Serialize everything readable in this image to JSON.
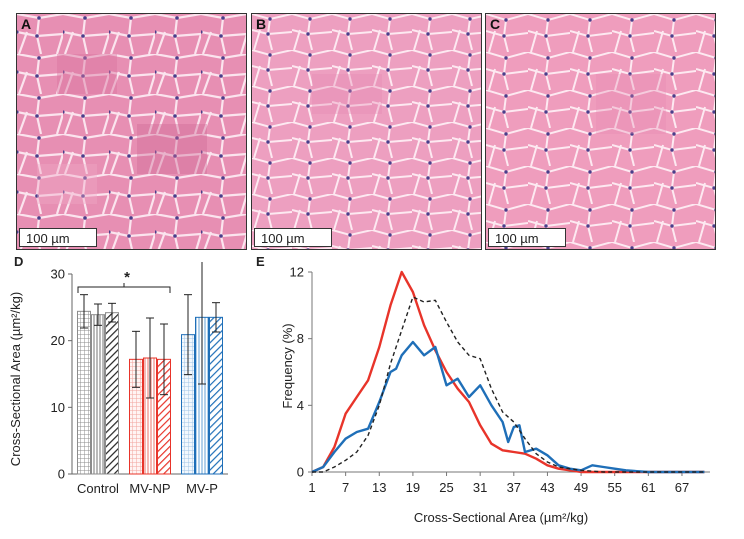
{
  "panels": [
    {
      "letter": "A",
      "scalebar": "100 µm"
    },
    {
      "letter": "B",
      "scalebar": "100 µm"
    },
    {
      "letter": "C",
      "scalebar": "100 µm"
    }
  ],
  "chart_data": [
    {
      "panel": "D",
      "type": "bar",
      "categories": [
        "Control",
        "MV-NP",
        "MV-P"
      ],
      "ylabel": "Cross-Sectional Area (µm²/kg)",
      "ylim": [
        0,
        30
      ],
      "yticks": [
        "0",
        "10",
        "20",
        "30"
      ],
      "significance": "*",
      "series": [
        {
          "values": [
            24.4,
            17.2,
            20.9
          ],
          "errors": [
            2.5,
            4.2,
            6.0
          ]
        },
        {
          "values": [
            23.9,
            17.4,
            23.5
          ],
          "errors": [
            1.6,
            6.0,
            10.0
          ]
        },
        {
          "values": [
            24.2,
            17.2,
            23.5
          ],
          "errors": [
            1.4,
            5.3,
            2.2
          ]
        }
      ],
      "colors": [
        "#8c8c8c",
        "#e8342a",
        "#1f6fb8"
      ]
    },
    {
      "panel": "E",
      "type": "line",
      "xlabel": "Cross-Sectional Area (µm²/kg)",
      "ylabel": "Frequency (%)",
      "xlim": [
        1,
        72
      ],
      "ylim": [
        0,
        12
      ],
      "xticks": [
        "1",
        "7",
        "13",
        "19",
        "25",
        "31",
        "37",
        "43",
        "49",
        "55",
        "61",
        "67"
      ],
      "yticks": [
        "0",
        "4",
        "8",
        "12"
      ],
      "series": [
        {
          "color": "#e8342a",
          "style": "solid",
          "x": [
            1,
            3,
            5,
            7,
            9,
            11,
            13,
            15,
            17,
            19,
            21,
            23,
            25,
            27,
            29,
            31,
            33,
            35,
            37,
            39,
            41,
            43,
            45,
            47,
            49,
            51,
            53,
            55,
            57,
            59,
            61,
            63,
            65,
            67,
            69,
            71
          ],
          "y": [
            0,
            0.3,
            1.5,
            3.5,
            4.5,
            5.5,
            7.5,
            10,
            12,
            10.8,
            8.8,
            7.3,
            6.0,
            5.0,
            4.2,
            2.8,
            1.7,
            1.3,
            1.2,
            1.1,
            0.8,
            0.4,
            0.2,
            0.1,
            0,
            0,
            0,
            0,
            0,
            0,
            0,
            0,
            0,
            0,
            0,
            0
          ]
        },
        {
          "color": "#1f6fb8",
          "style": "solid",
          "x": [
            1,
            3,
            5,
            7,
            9,
            11,
            13,
            15,
            16,
            17,
            19,
            21,
            23,
            25,
            27,
            29,
            31,
            33,
            35,
            36,
            37,
            38,
            39,
            41,
            43,
            45,
            47,
            49,
            51,
            53,
            55,
            57,
            59,
            61,
            63,
            65,
            67,
            69,
            71
          ],
          "y": [
            0,
            0.3,
            1.2,
            2.0,
            2.4,
            2.6,
            4.2,
            6.0,
            6.2,
            7.0,
            7.8,
            7.0,
            7.5,
            5.2,
            5.6,
            4.5,
            5.2,
            4.0,
            3.0,
            1.8,
            2.7,
            2.8,
            1.2,
            1.4,
            1.0,
            0.4,
            0.2,
            0.1,
            0.4,
            0.3,
            0.2,
            0.1,
            0.05,
            0,
            0,
            0,
            0,
            0,
            0
          ]
        },
        {
          "color": "#222222",
          "style": "dashed",
          "x": [
            1,
            3,
            5,
            7,
            9,
            11,
            13,
            15,
            17,
            19,
            21,
            23,
            25,
            27,
            29,
            31,
            33,
            35,
            37,
            39,
            41,
            43,
            45,
            47,
            49,
            51,
            53,
            55,
            57,
            59,
            61,
            63,
            65,
            67,
            69,
            71
          ],
          "y": [
            0,
            0,
            0.3,
            0.7,
            1.2,
            2.2,
            4.0,
            6.5,
            8.5,
            10.5,
            10.2,
            10.3,
            9.0,
            7.8,
            7.0,
            6.8,
            5.0,
            3.6,
            3.0,
            2.0,
            1.1,
            0.6,
            0.3,
            0.2,
            0.1,
            0.05,
            0,
            0,
            0,
            0,
            0,
            0,
            0,
            0,
            0,
            0
          ]
        }
      ]
    }
  ]
}
